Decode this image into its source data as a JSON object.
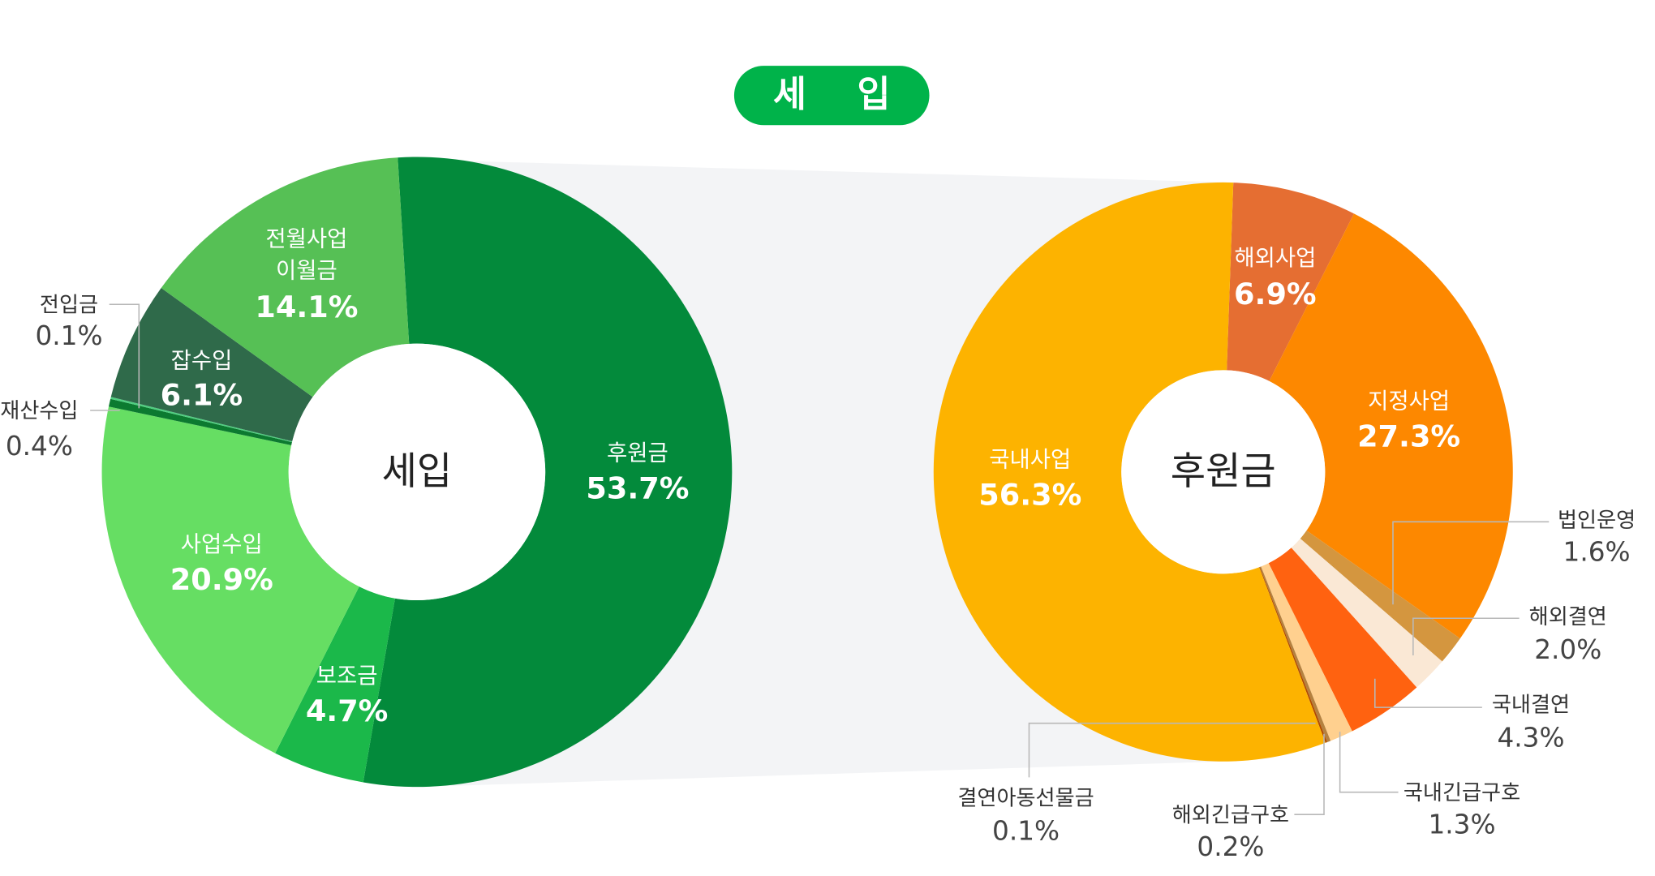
{
  "title": "세 입",
  "chart_data": [
    {
      "type": "pie",
      "variant": "donut",
      "center_label": "세입",
      "labels": [
        "후원금",
        "보조금",
        "사업수입",
        "재산수입",
        "전입금",
        "잡수입",
        "전월사업 이월금"
      ],
      "values": [
        53.7,
        4.7,
        20.9,
        0.4,
        0.1,
        6.1,
        14.1
      ],
      "value_labels": [
        "53.7%",
        "4.7%",
        "20.9%",
        "0.4%",
        "0.1%",
        "6.1%",
        "14.1%"
      ],
      "colors": [
        "#038a3b",
        "#1bb84a",
        "#66de63",
        "#0c7a30",
        "#4fcf80",
        "#2f6a4a",
        "#56c055"
      ],
      "exploded_slice": "후원금"
    },
    {
      "type": "pie",
      "variant": "donut",
      "center_label": "후원금",
      "labels": [
        "해외사업",
        "지정사업",
        "법인운영",
        "해외결연",
        "국내결연",
        "국내긴급구호",
        "해외긴급구호",
        "결연아동선물금",
        "국내사업"
      ],
      "values": [
        6.9,
        27.3,
        1.6,
        2.0,
        4.3,
        1.3,
        0.2,
        0.1,
        56.3
      ],
      "value_labels": [
        "6.9%",
        "27.3%",
        "1.6%",
        "2.0%",
        "4.3%",
        "1.3%",
        "0.2%",
        "0.1%",
        "56.3%"
      ],
      "colors": [
        "#e56e32",
        "#fd8800",
        "#d4963f",
        "#fae8d5",
        "#ff6210",
        "#ffd08f",
        "#b5813f",
        "#b04a00",
        "#fdb300"
      ]
    }
  ],
  "colors": {
    "title_pill": "#00b34a",
    "connector": "#f3f4f6"
  }
}
